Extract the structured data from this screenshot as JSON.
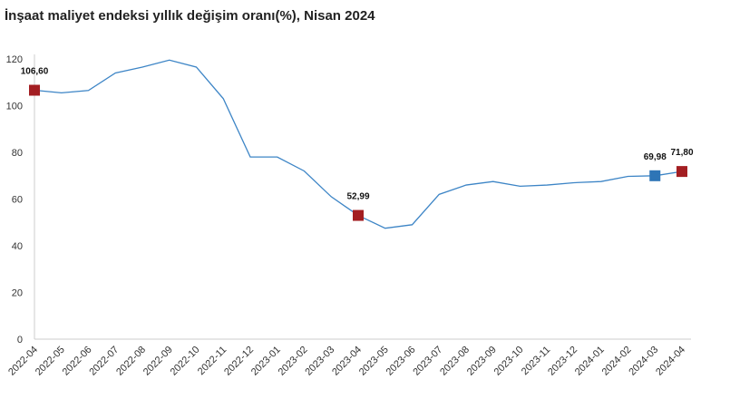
{
  "chart_data": {
    "type": "line",
    "title": "İnşaat maliyet endeksi yıllık değişim oranı(%), Nisan 2024",
    "categories": [
      "2022-04",
      "2022-05",
      "2022-06",
      "2022-07",
      "2022-08",
      "2022-09",
      "2022-10",
      "2022-11",
      "2022-12",
      "2023-01",
      "2023-02",
      "2023-03",
      "2023-04",
      "2023-05",
      "2023-06",
      "2023-07",
      "2023-08",
      "2023-09",
      "2023-10",
      "2023-11",
      "2023-12",
      "2024-01",
      "2024-02",
      "2024-03",
      "2024-04"
    ],
    "series": [
      {
        "color": "#3d85c6",
        "values": [
          106.6,
          105.5,
          106.5,
          114,
          116.5,
          119.5,
          116.5,
          103,
          78,
          78,
          72,
          61,
          52.99,
          47.5,
          49,
          62,
          66,
          67.5,
          65.5,
          66,
          67,
          67.5,
          69.7,
          69.98,
          71.8
        ],
        "value_labels": [
          "106,60",
          null,
          null,
          null,
          null,
          null,
          null,
          null,
          null,
          null,
          null,
          null,
          "52,99",
          null,
          null,
          null,
          null,
          null,
          null,
          null,
          null,
          null,
          null,
          "69,98",
          "71,80"
        ],
        "marker_colors": [
          "#a31e22",
          null,
          null,
          null,
          null,
          null,
          null,
          null,
          null,
          null,
          null,
          null,
          "#a31e22",
          null,
          null,
          null,
          null,
          null,
          null,
          null,
          null,
          null,
          null,
          "#2e75b6",
          "#a31e22"
        ]
      }
    ],
    "ylim": [
      0,
      120
    ],
    "yticks": [
      0,
      20,
      40,
      60,
      80,
      100,
      120
    ],
    "grid": false
  }
}
